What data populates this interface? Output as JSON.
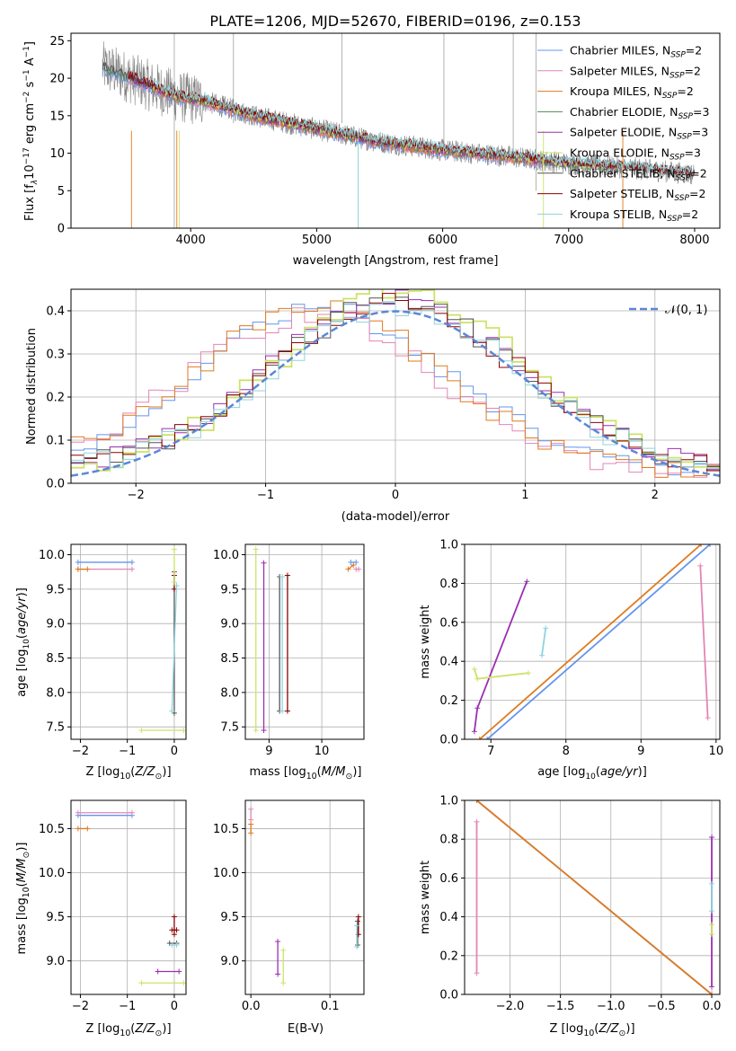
{
  "figure_title": "PLATE=1206, MJD=52670, FIBERID=0196, z=0.153",
  "colors": {
    "chabrier_miles": "#6495ed",
    "salpeter_miles": "#e385b6",
    "kroupa_miles": "#e07a1f",
    "chabrier_elodie": "#4f8a4f",
    "salpeter_elodie": "#9a2fb0",
    "kroupa_elodie": "#cde26a",
    "chabrier_stelib": "#555555",
    "salpeter_stelib": "#8b0000",
    "kroupa_stelib": "#8fd3dc",
    "gaussian": "#5b87d6",
    "grid": "#b0b0b0"
  },
  "chart_data": [
    {
      "id": "spectrum",
      "type": "line",
      "xlabel": "wavelength [Angstrom, rest frame]",
      "ylabel": "Flux [f",
      "ylabel_parts": [
        "Flux [f",
        "λ",
        "10",
        "−17",
        " erg cm",
        "−2",
        " s",
        "−1",
        " A",
        "−1",
        "]"
      ],
      "xlim": [
        3050,
        8200
      ],
      "ylim": [
        0,
        26
      ],
      "xticks": [
        4000,
        5000,
        6000,
        7000,
        8000
      ],
      "yticks": [
        0,
        5,
        10,
        15,
        20,
        25
      ],
      "grid": false,
      "legend_position": "top-right",
      "legend": [
        {
          "name": "Chabrier MILES",
          "n": "2",
          "color_key": "chabrier_miles"
        },
        {
          "name": "Salpeter MILES",
          "n": "2",
          "color_key": "salpeter_miles"
        },
        {
          "name": "Kroupa MILES",
          "n": "2",
          "color_key": "kroupa_miles"
        },
        {
          "name": "Chabrier ELODIE",
          "n": "3",
          "color_key": "chabrier_elodie"
        },
        {
          "name": "Salpeter ELODIE",
          "n": "3",
          "color_key": "salpeter_elodie"
        },
        {
          "name": "Kroupa ELODIE",
          "n": "3",
          "color_key": "kroupa_elodie"
        },
        {
          "name": "Chabrier STELIB",
          "n": "2",
          "color_key": "chabrier_stelib"
        },
        {
          "name": "Salpeter STELIB",
          "n": "2",
          "color_key": "salpeter_stelib"
        },
        {
          "name": "Kroupa STELIB",
          "n": "2",
          "color_key": "kroupa_stelib"
        }
      ],
      "continuum": {
        "x": [
          3300,
          3600,
          3900,
          4100,
          4500,
          5000,
          5500,
          6000,
          6500,
          7000,
          7500,
          8000
        ],
        "y": [
          21.5,
          19.5,
          17.5,
          17.0,
          15.0,
          13.2,
          11.5,
          10.4,
          9.6,
          8.6,
          8.0,
          7.2
        ]
      }
    },
    {
      "id": "residuals",
      "type": "line",
      "xlabel": "(data-model)/error",
      "ylabel": "Normed distribution",
      "xlim": [
        -2.5,
        2.5
      ],
      "ylim": [
        0,
        0.45
      ],
      "xticks": [
        -2,
        -1,
        0,
        1,
        2
      ],
      "yticks": [
        0.0,
        0.1,
        0.2,
        0.3,
        0.4
      ],
      "grid": true,
      "legend_position": "top-right",
      "legend": [
        {
          "name": "𝒩(0, 1)",
          "color_key": "gaussian"
        }
      ],
      "series": [
        {
          "color_key": "chabrier_miles",
          "center": -0.55,
          "peak": 0.37
        },
        {
          "color_key": "salpeter_miles",
          "center": -0.65,
          "peak": 0.36
        },
        {
          "color_key": "kroupa_miles",
          "center": -0.6,
          "peak": 0.38
        },
        {
          "color_key": "salpeter_elodie",
          "center": 0.0,
          "peak": 0.4
        },
        {
          "color_key": "kroupa_elodie",
          "center": 0.05,
          "peak": 0.41
        },
        {
          "color_key": "chabrier_stelib",
          "center": 0.0,
          "peak": 0.39
        },
        {
          "color_key": "salpeter_stelib",
          "center": 0.0,
          "peak": 0.39
        },
        {
          "color_key": "kroupa_stelib",
          "center": 0.0,
          "peak": 0.38
        }
      ]
    },
    {
      "id": "age_vs_Z",
      "type": "scatter",
      "xlabel": "Z [log",
      "ylabel": "age  [log",
      "xlim": [
        -2.2,
        0.25
      ],
      "ylim": [
        7.32,
        10.15
      ],
      "xticks": [
        -2,
        -1,
        0
      ],
      "yticks": [
        7.5,
        8.0,
        8.5,
        9.0,
        9.5,
        10.0
      ],
      "grid": true,
      "points": [
        {
          "color_key": "chabrier_miles",
          "x0": -2.05,
          "x1": -0.9,
          "y": 9.89
        },
        {
          "color_key": "salpeter_miles",
          "x0": -2.05,
          "x1": -0.9,
          "y": 9.79
        },
        {
          "color_key": "kroupa_miles",
          "x0": -2.05,
          "x1": -1.85,
          "y": 9.79
        },
        {
          "color_key": "kroupa_elodie",
          "x0": -0.7,
          "x1": 0.2,
          "y": 7.45
        },
        {
          "color_key": "chabrier_stelib",
          "x0": 0.0,
          "x1": 0.0,
          "y0": 7.7,
          "y1": 9.75
        },
        {
          "color_key": "salpeter_stelib",
          "x0": 0.0,
          "x1": 0.0,
          "y0": 9.5,
          "y1": 9.7
        },
        {
          "color_key": "kroupa_stelib",
          "x0": -0.05,
          "x1": 0.05,
          "y0": 7.73,
          "y1": 9.55
        },
        {
          "color_key": "kroupa_elodie",
          "x0": 0.0,
          "x1": 0.0,
          "y0": 9.6,
          "y1": 10.08
        }
      ]
    },
    {
      "id": "age_vs_mass",
      "type": "scatter",
      "xlabel": "mass [log",
      "xlim": [
        8.55,
        10.8
      ],
      "ylim": [
        7.32,
        10.15
      ],
      "xticks": [
        9,
        10
      ],
      "yticks": [
        7.5,
        8.0,
        8.5,
        9.0,
        9.5,
        10.0
      ],
      "grid": true,
      "points": [
        {
          "color_key": "kroupa_elodie",
          "x0": 8.75,
          "x1": 8.75,
          "y0": 7.45,
          "y1": 10.08
        },
        {
          "color_key": "salpeter_elodie",
          "x0": 8.9,
          "x1": 8.9,
          "y0": 7.45,
          "y1": 9.88
        },
        {
          "color_key": "chabrier_stelib",
          "x0": 9.2,
          "x1": 9.2,
          "y0": 7.73,
          "y1": 9.68
        },
        {
          "color_key": "kroupa_stelib",
          "x0": 9.25,
          "x1": 9.25,
          "y0": 7.73,
          "y1": 9.68
        },
        {
          "color_key": "salpeter_stelib",
          "x0": 9.35,
          "x1": 9.35,
          "y0": 7.73,
          "y1": 9.7
        },
        {
          "color_key": "kroupa_miles",
          "x0": 10.5,
          "x1": 10.6,
          "y0": 9.79,
          "y1": 9.85
        },
        {
          "color_key": "chabrier_miles",
          "x0": 10.55,
          "x1": 10.65,
          "y0": 9.89,
          "y1": 9.89
        },
        {
          "color_key": "salpeter_miles",
          "x0": 10.65,
          "x1": 10.7,
          "y0": 9.79,
          "y1": 9.79
        }
      ]
    },
    {
      "id": "weight_vs_age",
      "type": "line",
      "xlabel": "age  [log",
      "ylabel": "mass weight",
      "xlim": [
        6.65,
        10.05
      ],
      "ylim": [
        0,
        1.0
      ],
      "xticks": [
        7,
        8,
        9,
        10
      ],
      "yticks": [
        0.0,
        0.2,
        0.4,
        0.6,
        0.8,
        1.0
      ],
      "grid": true,
      "series": [
        {
          "color_key": "chabrier_miles",
          "x": [
            6.95,
            9.92
          ],
          "y": [
            0.0,
            1.0
          ]
        },
        {
          "color_key": "kroupa_miles",
          "x": [
            6.85,
            9.8
          ],
          "y": [
            0.0,
            1.0
          ]
        },
        {
          "color_key": "salpeter_elodie",
          "x": [
            6.78,
            6.82,
            7.48
          ],
          "y": [
            0.04,
            0.16,
            0.81
          ]
        },
        {
          "color_key": "kroupa_elodie",
          "x": [
            6.78,
            6.82,
            7.5
          ],
          "y": [
            0.36,
            0.31,
            0.34
          ]
        },
        {
          "color_key": "kroupa_stelib",
          "x": [
            7.68,
            7.73
          ],
          "y": [
            0.43,
            0.57
          ]
        },
        {
          "color_key": "salpeter_miles",
          "x": [
            9.79,
            9.89
          ],
          "y": [
            0.89,
            0.11
          ]
        }
      ]
    },
    {
      "id": "mass_vs_Z",
      "type": "scatter",
      "xlabel": "Z [log",
      "ylabel": "mass [log",
      "xlim": [
        -2.2,
        0.25
      ],
      "ylim": [
        8.62,
        10.82
      ],
      "xticks": [
        -2,
        -1,
        0
      ],
      "yticks": [
        9.0,
        9.5,
        10.0,
        10.5
      ],
      "grid": true,
      "points": [
        {
          "color_key": "chabrier_miles",
          "x0": -2.05,
          "x1": -0.9,
          "y": 10.65
        },
        {
          "color_key": "salpeter_miles",
          "x0": -2.05,
          "x1": -0.9,
          "y": 10.68
        },
        {
          "color_key": "kroupa_miles",
          "x0": -2.05,
          "x1": -1.85,
          "y": 10.5
        },
        {
          "color_key": "salpeter_elodie",
          "x0": -0.35,
          "x1": 0.1,
          "y": 8.88
        },
        {
          "color_key": "kroupa_elodie",
          "x0": -0.7,
          "x1": 0.2,
          "y": 8.75
        },
        {
          "color_key": "chabrier_stelib",
          "x0": -0.1,
          "x1": 0.05,
          "y": 9.2
        },
        {
          "color_key": "kroupa_stelib",
          "x0": -0.05,
          "x1": 0.05,
          "y": 9.18
        },
        {
          "color_key": "salpeter_stelib",
          "x0": -0.05,
          "x1": 0.05,
          "y": 9.35
        },
        {
          "color_key": "salpeter_stelib",
          "x0": 0.0,
          "x1": 0.0,
          "y0": 9.3,
          "y1": 9.5
        }
      ]
    },
    {
      "id": "mass_vs_ebv",
      "type": "scatter",
      "xlabel": "E(B-V)",
      "xlim": [
        -0.007,
        0.143
      ],
      "ylim": [
        8.62,
        10.82
      ],
      "xticks": [
        0.0,
        0.1
      ],
      "yticks": [
        9.0,
        9.5,
        10.0,
        10.5
      ],
      "grid": true,
      "points": [
        {
          "color_key": "salpeter_miles",
          "x0": 0.0,
          "x1": 0.0,
          "y0": 10.6,
          "y1": 10.72
        },
        {
          "color_key": "kroupa_miles",
          "x0": 0.0,
          "x1": 0.0,
          "y0": 10.45,
          "y1": 10.55
        },
        {
          "color_key": "salpeter_elodie",
          "x0": 0.034,
          "x1": 0.034,
          "y0": 8.85,
          "y1": 9.22
        },
        {
          "color_key": "kroupa_elodie",
          "x0": 0.041,
          "x1": 0.041,
          "y0": 8.75,
          "y1": 9.12
        },
        {
          "color_key": "chabrier_stelib",
          "x0": 0.135,
          "x1": 0.135,
          "y0": 9.18,
          "y1": 9.45
        },
        {
          "color_key": "salpeter_stelib",
          "x0": 0.136,
          "x1": 0.136,
          "y0": 9.3,
          "y1": 9.5
        },
        {
          "color_key": "kroupa_stelib",
          "x0": 0.134,
          "x1": 0.134,
          "y0": 9.16,
          "y1": 9.4
        }
      ]
    },
    {
      "id": "weight_vs_Z",
      "type": "line",
      "xlabel": "Z [log",
      "ylabel": "mass weight",
      "xlim": [
        -2.45,
        0.08
      ],
      "ylim": [
        0,
        1.0
      ],
      "xticks": [
        -2.0,
        -1.5,
        -1.0,
        -0.5,
        0.0
      ],
      "xtick_labels": [
        "−2.0",
        "−1.5",
        "−1.0",
        "−0.5",
        "0.0"
      ],
      "yticks": [
        0.0,
        0.2,
        0.4,
        0.6,
        0.8,
        1.0
      ],
      "grid": true,
      "series": [
        {
          "color_key": "chabrier_miles",
          "x": [
            -2.33,
            0.0
          ],
          "y": [
            1.0,
            0.0
          ]
        },
        {
          "color_key": "kroupa_miles",
          "x": [
            -2.33,
            0.0
          ],
          "y": [
            1.0,
            0.0
          ]
        },
        {
          "color_key": "salpeter_miles",
          "x": [
            -2.33,
            -2.33
          ],
          "y": [
            0.89,
            0.11
          ]
        },
        {
          "color_key": "salpeter_elodie",
          "x": [
            0.0,
            0.0
          ],
          "y": [
            0.04,
            0.81
          ]
        },
        {
          "color_key": "kroupa_stelib",
          "x": [
            0.0,
            0.0
          ],
          "y": [
            0.43,
            0.57
          ]
        },
        {
          "color_key": "kroupa_elodie",
          "x": [
            0.0,
            0.0
          ],
          "y": [
            0.31,
            0.36
          ]
        }
      ]
    }
  ]
}
